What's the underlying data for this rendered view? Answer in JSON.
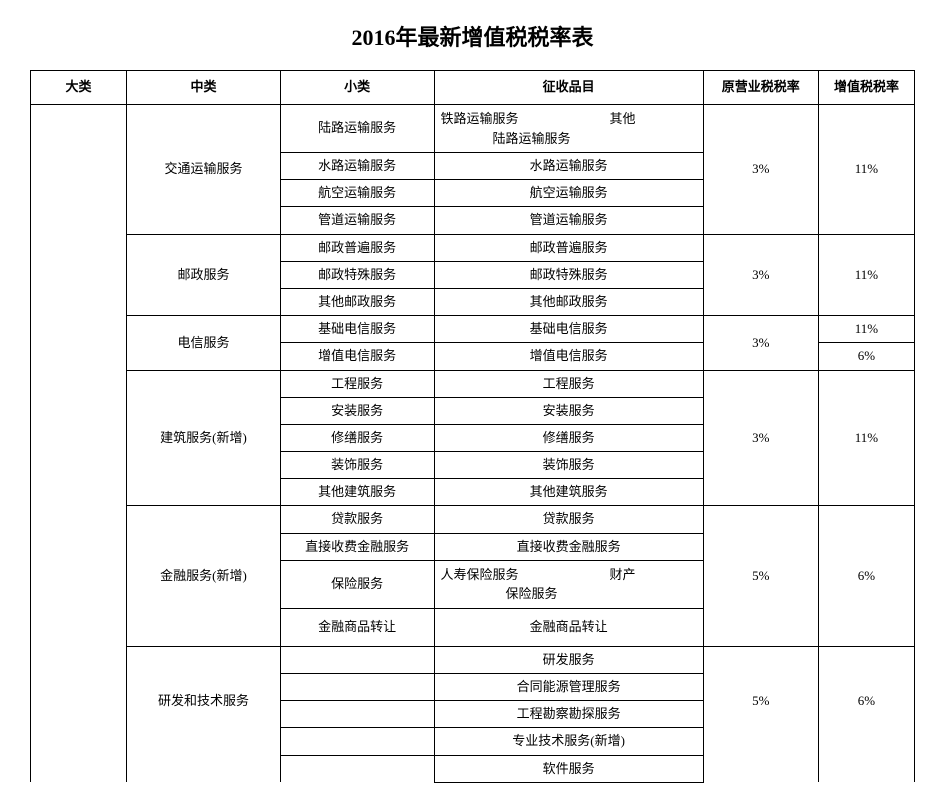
{
  "title": "2016年最新增值税税率表",
  "headers": {
    "c1": "大类",
    "c2": "中类",
    "c3": "小类",
    "c4": "征收品目",
    "c5": "原营业税税率",
    "c6": "增值税税率"
  },
  "groups": [
    {
      "zhonglei": "交通运输服务",
      "ying": "3%",
      "zengzhi": "11%",
      "rows": [
        {
          "xiaolei": "陆路运输服务",
          "pinmu_multi": "铁路运输服务　　　　　　　其他\n　　　　陆路运输服务"
        },
        {
          "xiaolei": "水路运输服务",
          "pinmu": "水路运输服务"
        },
        {
          "xiaolei": "航空运输服务",
          "pinmu": "航空运输服务"
        },
        {
          "xiaolei": "管道运输服务",
          "pinmu": "管道运输服务"
        }
      ]
    },
    {
      "zhonglei": "邮政服务",
      "ying": "3%",
      "zengzhi": "11%",
      "rows": [
        {
          "xiaolei": "邮政普遍服务",
          "pinmu": "邮政普遍服务"
        },
        {
          "xiaolei": "邮政特殊服务",
          "pinmu": "邮政特殊服务"
        },
        {
          "xiaolei": "其他邮政服务",
          "pinmu": "其他邮政服务"
        }
      ]
    },
    {
      "zhonglei": "电信服务",
      "ying": "3%",
      "rows": [
        {
          "xiaolei": "基础电信服务",
          "pinmu": "基础电信服务",
          "zengzhi": "11%"
        },
        {
          "xiaolei": "增值电信服务",
          "pinmu": "增值电信服务",
          "zengzhi": "6%"
        }
      ]
    },
    {
      "zhonglei": "建筑服务(新增)",
      "ying": "3%",
      "zengzhi": "11%",
      "rows": [
        {
          "xiaolei": "工程服务",
          "pinmu": "工程服务"
        },
        {
          "xiaolei": "安装服务",
          "pinmu": "安装服务"
        },
        {
          "xiaolei": "修缮服务",
          "pinmu": "修缮服务"
        },
        {
          "xiaolei": "装饰服务",
          "pinmu": "装饰服务"
        },
        {
          "xiaolei": "其他建筑服务",
          "pinmu": "其他建筑服务"
        }
      ]
    },
    {
      "zhonglei": "金融服务(新增)",
      "ying": "5%",
      "zengzhi": "6%",
      "rows": [
        {
          "xiaolei": "贷款服务",
          "pinmu": "贷款服务"
        },
        {
          "xiaolei": "直接收费金融服务",
          "pinmu": "直接收费金融服务"
        },
        {
          "xiaolei": "保险服务",
          "pinmu_multi": "人寿保险服务　　　　　　　财产\n　　　　　保险服务",
          "tall": true
        },
        {
          "xiaolei": "金融商品转让",
          "pinmu": "金融商品转让",
          "tall": true
        }
      ]
    },
    {
      "zhonglei": "研发和技术服务",
      "ying": "5%",
      "zengzhi": "6%",
      "open_bottom": true,
      "rows": [
        {
          "xiaolei": "",
          "pinmu": "研发服务"
        },
        {
          "xiaolei": "",
          "pinmu": "合同能源管理服务"
        },
        {
          "xiaolei": "",
          "pinmu": "工程勘察勘探服务"
        },
        {
          "xiaolei": "",
          "pinmu": "专业技术服务(新增)"
        }
      ]
    }
  ],
  "last_row": {
    "xiaolei": "",
    "pinmu": "软件服务"
  },
  "style": {
    "background_color": "#ffffff",
    "border_color": "#000000",
    "text_color": "#000000",
    "title_fontsize": 22,
    "body_fontsize": 13
  }
}
